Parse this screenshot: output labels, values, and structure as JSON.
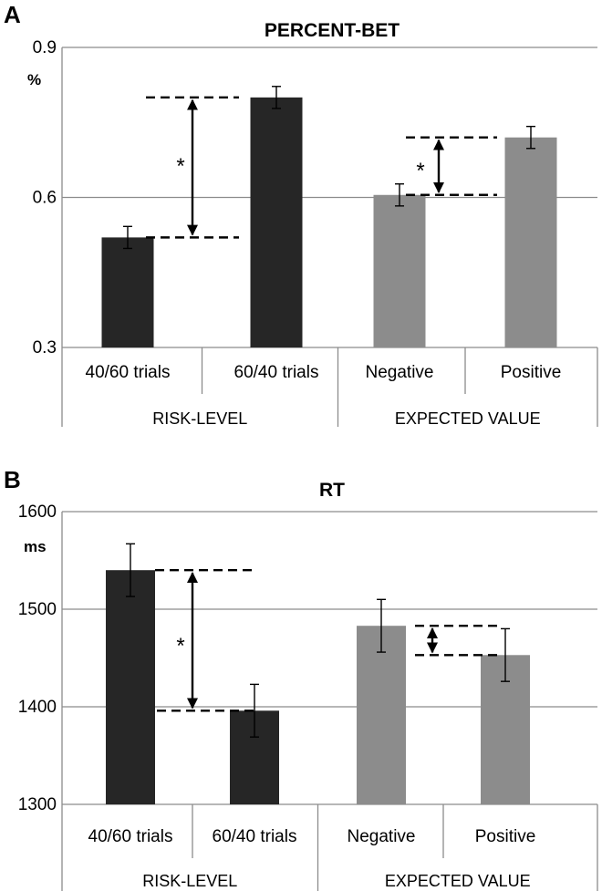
{
  "colors": {
    "dark_bar": "#262626",
    "grey_bar": "#8c8c8c",
    "grid": "#8c8c8c",
    "axis": "#8c8c8c"
  },
  "chart_data": [
    {
      "panel": "A",
      "type": "bar",
      "title": "PERCENT-BET",
      "ylabel": "%",
      "ylim": [
        0.3,
        0.9
      ],
      "yticks": [
        "0.3",
        "0.6",
        "0.9"
      ],
      "ytick_values": [
        0.3,
        0.6,
        0.9
      ],
      "categories": [
        "40/60 trials",
        "60/40 trials",
        "Negative",
        "Positive"
      ],
      "groups": [
        "RISK-LEVEL",
        "EXPECTED VALUE"
      ],
      "values": [
        0.52,
        0.8,
        0.605,
        0.72
      ],
      "errors": [
        0.022,
        0.022,
        0.022,
        0.022
      ],
      "colors": [
        "dark",
        "dark",
        "grey",
        "grey"
      ],
      "significance": [
        {
          "label": "*",
          "from": 0.52,
          "to": 0.8
        },
        {
          "label": "*",
          "from": 0.605,
          "to": 0.72
        }
      ]
    },
    {
      "panel": "B",
      "type": "bar",
      "title": "RT",
      "ylabel": "ms",
      "ylim": [
        1300,
        1600
      ],
      "yticks": [
        "1300",
        "1400",
        "1500",
        "1600"
      ],
      "ytick_values": [
        1300,
        1400,
        1500,
        1600
      ],
      "categories": [
        "40/60 trials",
        "60/40 trials",
        "Negative",
        "Positive"
      ],
      "groups": [
        "RISK-LEVEL",
        "EXPECTED VALUE"
      ],
      "values": [
        1540,
        1396,
        1483,
        1453
      ],
      "errors": [
        27,
        27,
        27,
        27
      ],
      "colors": [
        "dark",
        "dark",
        "grey",
        "grey"
      ],
      "significance": [
        {
          "label": "*",
          "from": 1540,
          "to": 1396
        },
        {
          "label": "",
          "from": 1483,
          "to": 1453
        }
      ]
    }
  ]
}
